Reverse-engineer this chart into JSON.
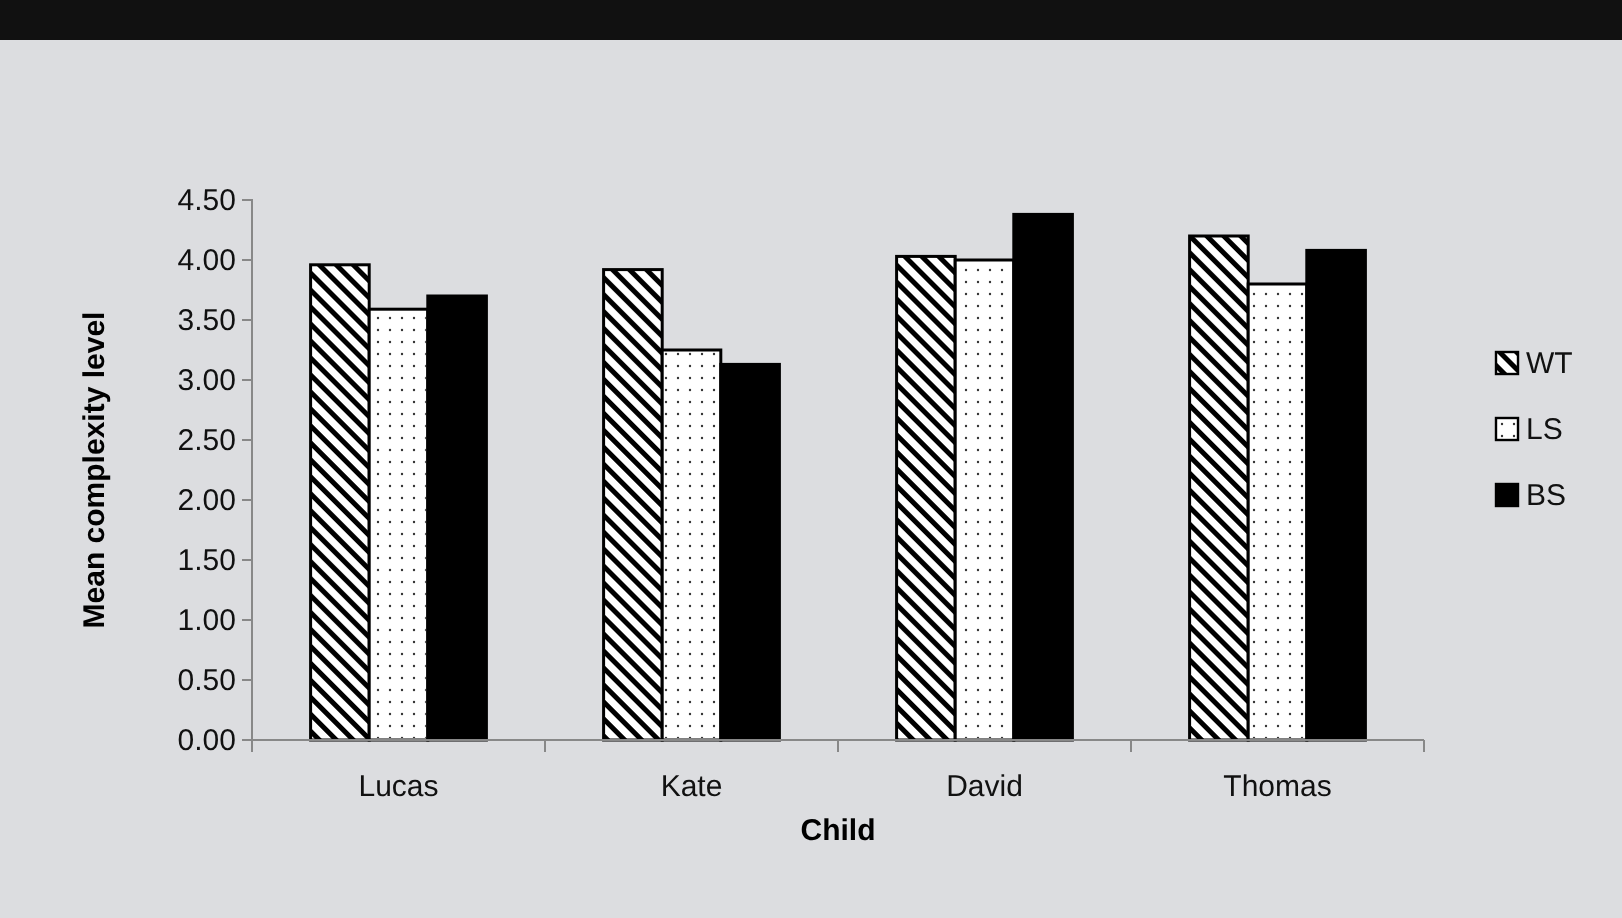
{
  "chart_data": {
    "type": "bar",
    "xlabel": "Child",
    "ylabel": "Mean complexity level",
    "categories": [
      "Lucas",
      "Kate",
      "David",
      "Thomas"
    ],
    "series": [
      {
        "name": "WT",
        "color": "#000000",
        "values": [
          3.96,
          3.92,
          4.03,
          4.2
        ]
      },
      {
        "name": "LS",
        "color": "#ffffff",
        "values": [
          3.59,
          3.25,
          4.0,
          3.8
        ]
      },
      {
        "name": "BS",
        "color": "#000000",
        "values": [
          3.7,
          3.13,
          4.38,
          4.08
        ]
      }
    ],
    "ylim": [
      0,
      4.5
    ],
    "yticks": [
      {
        "value": 0,
        "label": "0.00"
      },
      {
        "value": 0.5,
        "label": "0.50"
      },
      {
        "value": 1,
        "label": "1.00"
      },
      {
        "value": 1.5,
        "label": "1.50"
      },
      {
        "value": 2,
        "label": "2.00"
      },
      {
        "value": 2.5,
        "label": "2.50"
      },
      {
        "value": 3,
        "label": "3.00"
      },
      {
        "value": 3.5,
        "label": "3.50"
      },
      {
        "value": 4,
        "label": "4.00"
      },
      {
        "value": 4.5,
        "label": "4.50"
      }
    ],
    "grid": false,
    "legend": "right"
  }
}
